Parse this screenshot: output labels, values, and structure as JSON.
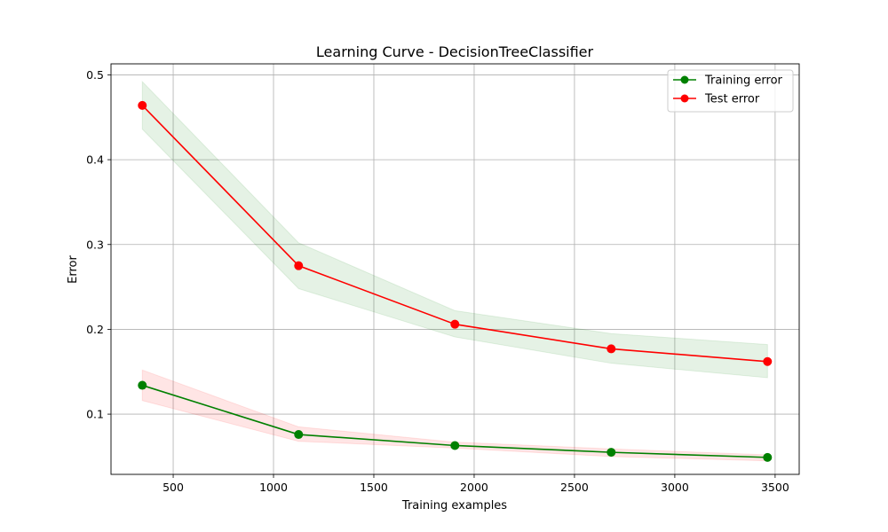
{
  "chart_data": {
    "type": "line",
    "title": "Learning Curve - DecisionTreeClassifier",
    "xlabel": "Training examples",
    "ylabel": "Error",
    "xlim": [
      190,
      3620
    ],
    "ylim": [
      0.029,
      0.513
    ],
    "xticks": [
      500,
      1000,
      1500,
      2000,
      2500,
      3000,
      3500
    ],
    "yticks": [
      0.1,
      0.2,
      0.3,
      0.4,
      0.5
    ],
    "xtick_labels": [
      "500",
      "1000",
      "1500",
      "2000",
      "2500",
      "3000",
      "3500"
    ],
    "ytick_labels": [
      "0.1",
      "0.2",
      "0.3",
      "0.4",
      "0.5"
    ],
    "grid": true,
    "legend_position": "top-right",
    "x": [
      346,
      1125,
      1904,
      2683,
      3462
    ],
    "series": [
      {
        "name": "Training error",
        "color": "#008000",
        "values": [
          0.134,
          0.076,
          0.063,
          0.055,
          0.049
        ],
        "band_lower": [
          0.116,
          0.068,
          0.06,
          0.05,
          0.045
        ],
        "band_upper": [
          0.152,
          0.085,
          0.067,
          0.059,
          0.052
        ],
        "band_color": "#ff0000"
      },
      {
        "name": "Test error",
        "color": "#ff0000",
        "values": [
          0.464,
          0.275,
          0.206,
          0.177,
          0.162
        ],
        "band_lower": [
          0.436,
          0.248,
          0.191,
          0.16,
          0.143
        ],
        "band_upper": [
          0.492,
          0.302,
          0.222,
          0.195,
          0.182
        ],
        "band_color": "#008000"
      }
    ]
  }
}
